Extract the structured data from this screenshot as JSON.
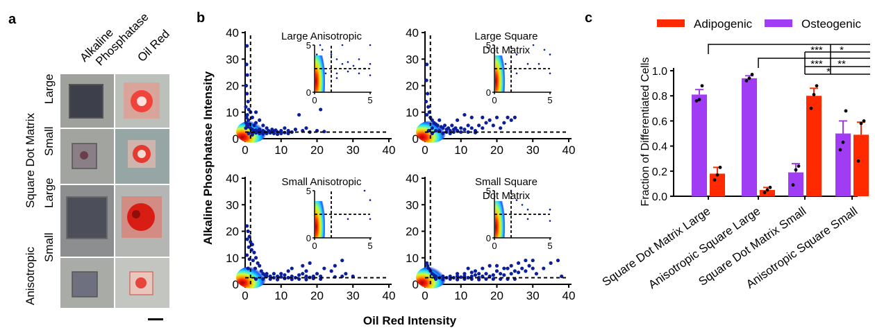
{
  "panels": {
    "a": {
      "label": "a",
      "col_headers": [
        "Alkaline\nPhosphatase",
        "Oil Red"
      ],
      "groups": [
        {
          "name": "Square Dot Matrix",
          "rows": [
            "Large",
            "Small"
          ]
        },
        {
          "name": "Anisotropic",
          "rows": [
            "Large",
            "Small"
          ]
        }
      ]
    },
    "b": {
      "label": "b",
      "ylabel": "Alkaline Phosphatase Intensity",
      "xlabel": "Oil Red Intensity"
    },
    "c": {
      "label": "c"
    }
  },
  "chart_data": [
    {
      "type": "scatter",
      "title": "Large Anisotropic",
      "xlim": [
        0,
        40
      ],
      "ylim": [
        0,
        40
      ],
      "xticks": [
        0,
        10,
        20,
        30,
        40
      ],
      "yticks": [
        0,
        10,
        20,
        30,
        40
      ],
      "thresholds": {
        "x": 1.5,
        "y": 2.5
      },
      "points": [
        [
          0.5,
          35
        ],
        [
          0.4,
          28
        ],
        [
          0.6,
          24
        ],
        [
          0.3,
          20
        ],
        [
          0.5,
          17
        ],
        [
          0.8,
          14
        ],
        [
          0.2,
          12
        ],
        [
          1.0,
          11
        ],
        [
          0.6,
          9
        ],
        [
          0.4,
          8
        ],
        [
          0.9,
          7
        ],
        [
          0.3,
          6
        ],
        [
          1.2,
          5.5
        ],
        [
          0.5,
          5
        ],
        [
          0.7,
          4.5
        ],
        [
          0.2,
          4
        ],
        [
          1.5,
          4
        ],
        [
          2,
          3.5
        ],
        [
          2.5,
          3
        ],
        [
          3,
          3.2
        ],
        [
          3.5,
          2.8
        ],
        [
          4,
          3.5
        ],
        [
          4.5,
          2.5
        ],
        [
          5,
          3
        ],
        [
          5.5,
          2.6
        ],
        [
          6,
          4
        ],
        [
          6.5,
          3
        ],
        [
          7,
          2.5
        ],
        [
          7.5,
          3.5
        ],
        [
          8,
          2.8
        ],
        [
          8.5,
          3.2
        ],
        [
          9,
          2.5
        ],
        [
          10,
          3
        ],
        [
          11,
          4
        ],
        [
          12,
          3
        ],
        [
          13,
          2.5
        ],
        [
          14,
          3.5
        ],
        [
          15,
          9
        ],
        [
          16,
          3
        ],
        [
          17,
          4
        ],
        [
          18,
          2.5
        ],
        [
          20,
          3
        ],
        [
          21,
          11
        ],
        [
          22,
          2.7
        ],
        [
          2,
          8
        ],
        [
          3,
          6
        ],
        [
          1.5,
          10
        ],
        [
          2.5,
          5
        ],
        [
          4,
          7
        ],
        [
          5,
          5
        ],
        [
          3,
          10
        ],
        [
          1,
          2
        ],
        [
          2,
          2
        ],
        [
          4,
          2
        ],
        [
          6,
          2
        ],
        [
          8,
          2
        ],
        [
          10,
          2
        ],
        [
          12,
          2
        ],
        [
          2,
          1.5
        ],
        [
          3,
          2.2
        ],
        [
          5,
          1.8
        ],
        [
          7,
          2.2
        ],
        [
          9,
          1.7
        ],
        [
          11,
          2.3
        ]
      ],
      "inset": {
        "xlim": [
          0,
          5
        ],
        "ylim": [
          0,
          5
        ],
        "xticks": [
          0,
          5
        ],
        "yticks": [
          0,
          5
        ]
      }
    },
    {
      "type": "scatter",
      "title": "Large Square\nDot Matrix",
      "xlim": [
        0,
        40
      ],
      "ylim": [
        0,
        40
      ],
      "xticks": [
        0,
        10,
        20,
        30,
        40
      ],
      "yticks": [
        0,
        10,
        20,
        30,
        40
      ],
      "thresholds": {
        "x": 1.5,
        "y": 2.5
      },
      "points": [
        [
          0.5,
          28
        ],
        [
          0.4,
          22
        ],
        [
          0.7,
          17
        ],
        [
          0.3,
          14
        ],
        [
          0.9,
          12
        ],
        [
          1.2,
          10
        ],
        [
          0.5,
          9
        ],
        [
          1.5,
          8
        ],
        [
          2,
          7
        ],
        [
          2.5,
          6
        ],
        [
          3,
          5.5
        ],
        [
          3.5,
          5
        ],
        [
          4,
          7
        ],
        [
          4.5,
          4.5
        ],
        [
          5,
          4
        ],
        [
          5.5,
          5
        ],
        [
          6,
          3.5
        ],
        [
          6.5,
          4
        ],
        [
          7,
          3
        ],
        [
          7.5,
          5
        ],
        [
          8,
          3.5
        ],
        [
          8.5,
          4
        ],
        [
          9,
          3
        ],
        [
          10,
          4
        ],
        [
          11,
          3.5
        ],
        [
          12,
          5
        ],
        [
          13,
          4
        ],
        [
          14,
          3
        ],
        [
          15,
          5
        ],
        [
          16,
          4
        ],
        [
          17,
          6
        ],
        [
          18,
          7
        ],
        [
          19,
          5
        ],
        [
          20,
          8
        ],
        [
          21,
          4
        ],
        [
          22,
          6
        ],
        [
          23,
          8
        ],
        [
          24,
          7
        ],
        [
          25,
          8
        ],
        [
          11,
          9
        ],
        [
          13,
          8
        ],
        [
          9,
          7
        ],
        [
          16,
          8
        ],
        [
          2,
          4
        ],
        [
          3,
          3
        ],
        [
          1,
          3
        ],
        [
          4,
          3
        ],
        [
          6,
          2.5
        ],
        [
          8,
          2.5
        ],
        [
          10,
          2.5
        ],
        [
          12,
          2.5
        ],
        [
          14,
          2.3
        ],
        [
          2,
          2
        ],
        [
          5,
          2
        ],
        [
          7,
          2
        ]
      ],
      "inset": {
        "xlim": [
          0,
          5
        ],
        "ylim": [
          0,
          5
        ],
        "xticks": [
          0,
          5
        ],
        "yticks": [
          0,
          5
        ]
      }
    },
    {
      "type": "scatter",
      "title": "Small Anisotropic",
      "xlim": [
        0,
        40
      ],
      "ylim": [
        0,
        40
      ],
      "xticks": [
        0,
        10,
        20,
        30,
        40
      ],
      "yticks": [
        0,
        10,
        20,
        30,
        40
      ],
      "thresholds": {
        "x": 1.5,
        "y": 2.5
      },
      "points": [
        [
          0.5,
          22
        ],
        [
          0.8,
          20
        ],
        [
          1.2,
          18
        ],
        [
          0.6,
          17
        ],
        [
          1.5,
          16
        ],
        [
          2,
          15
        ],
        [
          1,
          14
        ],
        [
          1.8,
          13
        ],
        [
          2.5,
          12
        ],
        [
          0.5,
          11
        ],
        [
          3,
          10
        ],
        [
          1.2,
          9.5
        ],
        [
          2.2,
          9
        ],
        [
          3.5,
          8
        ],
        [
          4,
          7
        ],
        [
          0.8,
          6
        ],
        [
          2.8,
          6
        ],
        [
          4.5,
          5
        ],
        [
          5,
          4
        ],
        [
          5.5,
          3.5
        ],
        [
          6,
          3
        ],
        [
          7,
          3
        ],
        [
          8,
          2.5
        ],
        [
          9,
          3
        ],
        [
          10,
          2.8
        ],
        [
          11,
          3.5
        ],
        [
          12,
          2.5
        ],
        [
          13,
          3
        ],
        [
          14,
          2.5
        ],
        [
          15,
          3.5
        ],
        [
          16,
          4
        ],
        [
          17,
          3
        ],
        [
          18,
          2.6
        ],
        [
          19,
          3
        ],
        [
          20,
          4
        ],
        [
          21,
          3
        ],
        [
          22,
          6
        ],
        [
          24,
          5
        ],
        [
          25,
          2.8
        ],
        [
          27,
          3
        ],
        [
          28,
          4
        ],
        [
          30,
          3
        ],
        [
          12,
          5
        ],
        [
          13,
          6
        ],
        [
          16,
          7
        ],
        [
          18,
          8
        ],
        [
          25,
          7
        ],
        [
          27,
          9
        ],
        [
          17,
          5
        ],
        [
          10,
          4
        ],
        [
          8,
          4
        ],
        [
          6,
          4
        ],
        [
          3,
          2
        ],
        [
          5,
          2
        ],
        [
          7,
          2
        ],
        [
          9,
          1.8
        ],
        [
          11,
          2.2
        ],
        [
          13,
          1.9
        ],
        [
          15,
          2
        ],
        [
          17,
          1.8
        ],
        [
          19,
          2.2
        ],
        [
          21,
          2
        ]
      ],
      "inset": {
        "xlim": [
          0,
          5
        ],
        "ylim": [
          0,
          5
        ],
        "xticks": [
          0,
          5
        ],
        "yticks": [
          0,
          5
        ]
      }
    },
    {
      "type": "scatter",
      "title": "Small Square\nDot Matrix",
      "xlim": [
        0,
        40
      ],
      "ylim": [
        0,
        40
      ],
      "xticks": [
        0,
        10,
        20,
        30,
        40
      ],
      "yticks": [
        0,
        10,
        20,
        30,
        40
      ],
      "thresholds": {
        "x": 1.5,
        "y": 2.5
      },
      "points": [
        [
          0.5,
          8
        ],
        [
          0.7,
          7
        ],
        [
          1,
          6
        ],
        [
          1.5,
          5
        ],
        [
          2,
          4
        ],
        [
          2.5,
          3.5
        ],
        [
          3,
          3
        ],
        [
          4,
          2.5
        ],
        [
          5,
          3
        ],
        [
          6,
          2.5
        ],
        [
          7,
          3
        ],
        [
          8,
          2.5
        ],
        [
          9,
          3
        ],
        [
          10,
          2.7
        ],
        [
          11,
          3
        ],
        [
          12,
          2.5
        ],
        [
          13,
          3
        ],
        [
          14,
          3.5
        ],
        [
          15,
          2.5
        ],
        [
          16,
          3
        ],
        [
          17,
          4
        ],
        [
          18,
          3
        ],
        [
          19,
          3.5
        ],
        [
          20,
          5
        ],
        [
          21,
          4
        ],
        [
          22,
          3.5
        ],
        [
          23,
          6
        ],
        [
          24,
          4
        ],
        [
          25,
          5
        ],
        [
          26,
          4.5
        ],
        [
          27,
          6
        ],
        [
          28,
          5
        ],
        [
          29,
          7
        ],
        [
          30,
          6
        ],
        [
          31,
          4
        ],
        [
          33,
          6
        ],
        [
          35,
          8
        ],
        [
          37,
          9
        ],
        [
          38,
          3
        ],
        [
          12,
          6
        ],
        [
          14,
          5
        ],
        [
          16,
          6
        ],
        [
          18,
          7
        ],
        [
          20,
          7
        ],
        [
          22,
          6
        ],
        [
          24,
          7
        ],
        [
          26,
          8
        ],
        [
          28,
          9
        ],
        [
          30,
          9
        ],
        [
          9,
          4
        ],
        [
          11,
          4
        ],
        [
          13,
          4.5
        ],
        [
          15,
          4
        ],
        [
          3,
          2
        ],
        [
          5,
          1.8
        ],
        [
          7,
          2
        ],
        [
          9,
          1.8
        ],
        [
          11,
          2
        ],
        [
          13,
          2
        ],
        [
          15,
          1.8
        ],
        [
          17,
          2
        ],
        [
          19,
          2
        ],
        [
          21,
          2
        ],
        [
          23,
          2
        ],
        [
          25,
          2
        ]
      ],
      "inset": {
        "xlim": [
          0,
          5
        ],
        "ylim": [
          0,
          5
        ],
        "xticks": [
          0,
          5
        ],
        "yticks": [
          0,
          5
        ]
      }
    },
    {
      "type": "bar",
      "ylabel": "Fraction of Differentiated Cells",
      "ylim": [
        0,
        1.0
      ],
      "yticks": [
        "0.0",
        "0.2",
        "0.4",
        "0.6",
        "0.8",
        "1.0"
      ],
      "categories": [
        "Square Dot Matrix Large",
        "Anisotropic Square Large",
        "Square Dot Matrix Small",
        "Anisotropic Square Small"
      ],
      "series": [
        {
          "name": "Osteogenic",
          "color": "#a13cf5",
          "values": [
            0.81,
            0.94,
            0.19,
            0.5
          ],
          "errors": [
            0.04,
            0.02,
            0.07,
            0.1
          ],
          "dots": [
            [
              0.76,
              0.77,
              0.88
            ],
            [
              0.92,
              0.94,
              0.97
            ],
            [
              0.09,
              0.21,
              0.24
            ],
            [
              0.37,
              0.43,
              0.68
            ]
          ]
        },
        {
          "name": "Adipogenic",
          "color": "#ff2a00",
          "values": [
            0.18,
            0.05,
            0.8,
            0.49
          ],
          "errors": [
            0.05,
            0.02,
            0.06,
            0.1
          ],
          "dots": [
            [
              0.13,
              0.17,
              0.23
            ],
            [
              0.03,
              0.05,
              0.07
            ],
            [
              0.7,
              0.81,
              0.88
            ],
            [
              0.28,
              0.58,
              0.6
            ]
          ]
        }
      ],
      "significance": [
        {
          "text": "***",
          "from": 2,
          "to": 3
        },
        {
          "text": "*",
          "from": 0,
          "to": 3
        },
        {
          "text": "***",
          "from": 2,
          "to": 3
        },
        {
          "text": "**",
          "from": 1,
          "to": 3
        },
        {
          "text": "*",
          "from": 2,
          "to": 3
        }
      ]
    }
  ]
}
